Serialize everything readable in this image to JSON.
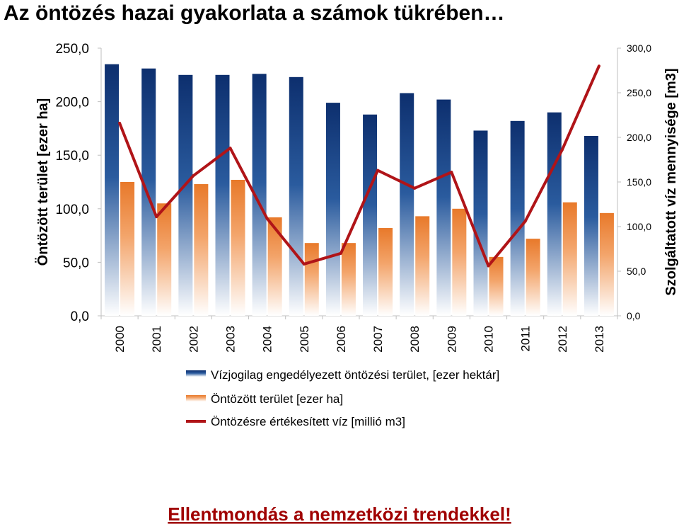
{
  "title": "Az öntözés hazai gyakorlata a számok tükrében…",
  "footer": "Ellentmondás a nemzetközi trendekkel!",
  "colors": {
    "bar1": "#0d2f6e",
    "bar2": "#e8792a",
    "line": "#b01418",
    "footer": "#a00000"
  },
  "chart_data": {
    "type": "bar",
    "categories": [
      "2000",
      "2001",
      "2002",
      "2003",
      "2004",
      "2005",
      "2006",
      "2007",
      "2008",
      "2009",
      "2010",
      "2011",
      "2012",
      "2013"
    ],
    "series": [
      {
        "name": "Vízjogilag engedélyezett öntözési terület, [ezer hektár]",
        "type": "bar",
        "axis": "left",
        "values": [
          235,
          231,
          225,
          225,
          226,
          223,
          199,
          188,
          208,
          202,
          173,
          182,
          190,
          168
        ]
      },
      {
        "name": "Öntözött terület [ezer ha]",
        "type": "bar",
        "axis": "left",
        "values": [
          125,
          105,
          123,
          127,
          92,
          68,
          68,
          82,
          93,
          100,
          55,
          72,
          106,
          96
        ]
      },
      {
        "name": "Öntözésre értékesített víz [millió m3]",
        "type": "line",
        "axis": "right",
        "values": [
          216,
          111,
          157,
          188,
          109,
          58,
          70,
          163,
          143,
          161,
          56,
          106,
          186,
          280
        ]
      }
    ],
    "ylabel": "Öntözött terület [ezer ha]",
    "y2label": "Szolgáltatott víz mennyisége [m3]",
    "ylim": [
      0,
      250
    ],
    "y2lim": [
      0,
      300
    ],
    "yticks": [
      "0,0",
      "50,0",
      "100,0",
      "150,0",
      "200,0",
      "250,0"
    ],
    "y2ticks": [
      "0,0",
      "50,0",
      "100,0",
      "150,0",
      "200,0",
      "250,0",
      "300,0"
    ],
    "legend_position": "bottom",
    "grid": false
  }
}
